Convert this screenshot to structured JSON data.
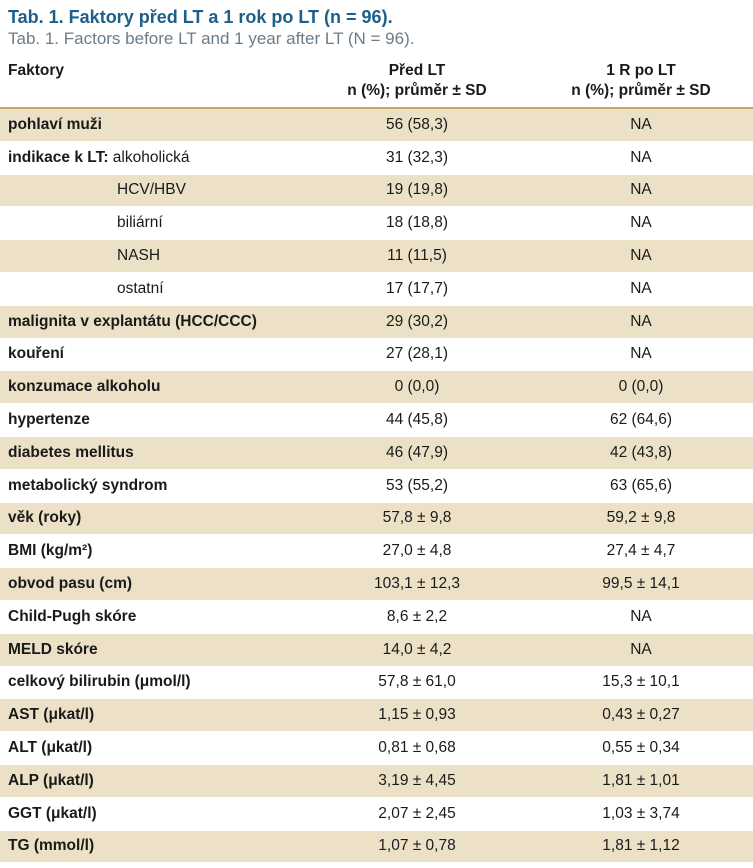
{
  "caption": {
    "title_cz": "Tab. 1. Faktory před LT a 1 rok po LT (n = 96).",
    "title_en": "Tab. 1. Factors before LT and 1 year after LT (N = 96)."
  },
  "table": {
    "headers": {
      "col1": "Faktory",
      "col2_line1": "Před LT",
      "col2_line2": "n (%); průměr ± SD",
      "col3_line1": "1 R po LT",
      "col3_line2": "n (%); průměr ± SD"
    },
    "rows": [
      {
        "label": "pohlaví muži",
        "before": "56 (58,3)",
        "after": "NA"
      },
      {
        "label": "indikace k LT:",
        "sublabel": " alkoholická",
        "before": "31 (32,3)",
        "after": "NA"
      },
      {
        "label": "HCV/HBV",
        "indent": true,
        "before": "19 (19,8)",
        "after": "NA"
      },
      {
        "label": "biliární",
        "indent": true,
        "before": "18 (18,8)",
        "after": "NA"
      },
      {
        "label": "NASH",
        "indent": true,
        "before": "11 (11,5)",
        "after": "NA"
      },
      {
        "label": "ostatní",
        "indent": true,
        "before": "17 (17,7)",
        "after": "NA"
      },
      {
        "label": "malignita v explantátu (HCC/CCC)",
        "before": "29 (30,2)",
        "after": "NA"
      },
      {
        "label": "kouření",
        "before": "27 (28,1)",
        "after": "NA"
      },
      {
        "label": "konzumace alkoholu",
        "before": "0 (0,0)",
        "after": "0 (0,0)"
      },
      {
        "label": "hypertenze",
        "before": "44 (45,8)",
        "after": "62 (64,6)"
      },
      {
        "label": "diabetes mellitus",
        "before": "46 (47,9)",
        "after": "42 (43,8)"
      },
      {
        "label": "metabolický syndrom",
        "before": "53 (55,2)",
        "after": "63 (65,6)"
      },
      {
        "label": "věk (roky)",
        "before": "57,8 ± 9,8",
        "after": "59,2 ± 9,8"
      },
      {
        "label": "BMI (kg/m²)",
        "before": "27,0 ± 4,8",
        "after": "27,4 ± 4,7"
      },
      {
        "label": "obvod pasu (cm)",
        "before": "103,1 ± 12,3",
        "after": "99,5 ± 14,1"
      },
      {
        "label": "Child-Pugh skóre",
        "before": "8,6 ± 2,2",
        "after": "NA"
      },
      {
        "label": "MELD skóre",
        "before": "14,0 ± 4,2",
        "after": "NA"
      },
      {
        "label": "celkový bilirubin (μmol/l)",
        "before": "57,8 ± 61,0",
        "after": "15,3 ± 10,1"
      },
      {
        "label": "AST (μkat/l)",
        "before": "1,15 ± 0,93",
        "after": "0,43 ± 0,27"
      },
      {
        "label": "ALT (μkat/l)",
        "before": "0,81 ± 0,68",
        "after": "0,55 ± 0,34"
      },
      {
        "label": "ALP (μkat/l)",
        "before": "3,19 ± 4,45",
        "after": "1,81 ± 1,01"
      },
      {
        "label": "GGT (μkat/l)",
        "before": "2,07 ± 2,45",
        "after": "1,03 ± 3,74"
      },
      {
        "label": "TG (mmol/l)",
        "before": "1,07 ± 0,78",
        "after": "1,81 ± 1,12"
      }
    ]
  },
  "colors": {
    "title": "#1d5f8a",
    "subtitle": "#6c7c88",
    "stripe": "#ece1c6"
  }
}
